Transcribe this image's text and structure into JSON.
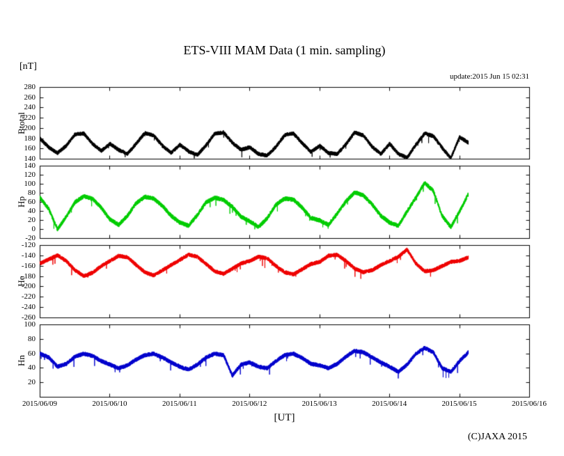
{
  "chart_data": {
    "type": "line",
    "title": "ETS-VIII MAM Data (1 min. sampling)",
    "y_unit_label": "[nT]",
    "update_text": "update:2015 Jun 15 02:31",
    "copyright": "(C)JAXA 2015",
    "x_axis": {
      "label": "[UT]",
      "range_days": [
        0,
        7
      ],
      "tick_labels": [
        "2015/06/09",
        "2015/06/10",
        "2015/06/11",
        "2015/06/12",
        "2015/06/13",
        "2015/06/14",
        "2015/06/15",
        "2015/06/16"
      ]
    },
    "layout": {
      "grid": false,
      "legend": "none",
      "panels_stacked": 4,
      "data_end_day": 6.125
    },
    "panels": [
      {
        "name": "Btotal",
        "color": "#000000",
        "ylim": [
          140,
          280
        ],
        "yticks": [
          140,
          160,
          180,
          200,
          220,
          240,
          260,
          280
        ],
        "x_start": 0,
        "x_step_days": 0.125,
        "noise_amplitude": 4,
        "values": [
          180,
          163,
          152,
          166,
          188,
          190,
          170,
          156,
          170,
          158,
          150,
          170,
          191,
          186,
          166,
          152,
          168,
          155,
          148,
          167,
          190,
          192,
          172,
          158,
          163,
          150,
          147,
          164,
          187,
          190,
          171,
          154,
          166,
          152,
          150,
          169,
          192,
          186,
          164,
          150,
          170,
          150,
          143,
          168,
          190,
          185,
          162,
          142,
          183,
          172
        ]
      },
      {
        "name": "Hp",
        "color": "#00cc00",
        "ylim": [
          -20,
          140
        ],
        "yticks": [
          -20,
          0,
          20,
          40,
          60,
          80,
          100,
          120,
          140
        ],
        "x_start": 0,
        "x_step_days": 0.125,
        "noise_amplitude": 5,
        "values": [
          70,
          45,
          0,
          28,
          60,
          73,
          68,
          48,
          22,
          10,
          30,
          58,
          72,
          68,
          52,
          30,
          15,
          8,
          32,
          60,
          70,
          65,
          50,
          28,
          18,
          5,
          25,
          55,
          68,
          66,
          48,
          25,
          20,
          10,
          35,
          62,
          82,
          75,
          55,
          30,
          15,
          8,
          40,
          70,
          103,
          85,
          30,
          5,
          40,
          78
        ]
      },
      {
        "name": "He",
        "color": "#ee0000",
        "ylim": [
          -260,
          -120
        ],
        "yticks": [
          -260,
          -240,
          -220,
          -200,
          -180,
          -160,
          -140,
          -120
        ],
        "x_start": 0,
        "x_step_days": 0.125,
        "noise_amplitude": 4,
        "values": [
          -155,
          -147,
          -139,
          -150,
          -168,
          -179,
          -173,
          -160,
          -150,
          -140,
          -143,
          -158,
          -172,
          -178,
          -168,
          -158,
          -148,
          -138,
          -142,
          -156,
          -170,
          -175,
          -165,
          -155,
          -150,
          -142,
          -145,
          -160,
          -172,
          -176,
          -166,
          -156,
          -152,
          -140,
          -138,
          -150,
          -165,
          -172,
          -168,
          -158,
          -150,
          -142,
          -128,
          -155,
          -170,
          -168,
          -160,
          -152,
          -150,
          -143
        ]
      },
      {
        "name": "Hn",
        "color": "#0000cc",
        "ylim": [
          0,
          100
        ],
        "yticks": [
          20,
          40,
          60,
          80,
          100
        ],
        "x_start": 0,
        "x_step_days": 0.125,
        "noise_amplitude": 3,
        "values": [
          60,
          55,
          42,
          46,
          56,
          60,
          57,
          50,
          45,
          40,
          44,
          52,
          58,
          60,
          55,
          48,
          42,
          38,
          45,
          55,
          60,
          58,
          30,
          45,
          48,
          42,
          40,
          50,
          58,
          60,
          54,
          46,
          44,
          40,
          46,
          56,
          64,
          62,
          55,
          48,
          42,
          35,
          45,
          60,
          68,
          62,
          40,
          35,
          50,
          62
        ]
      }
    ]
  }
}
